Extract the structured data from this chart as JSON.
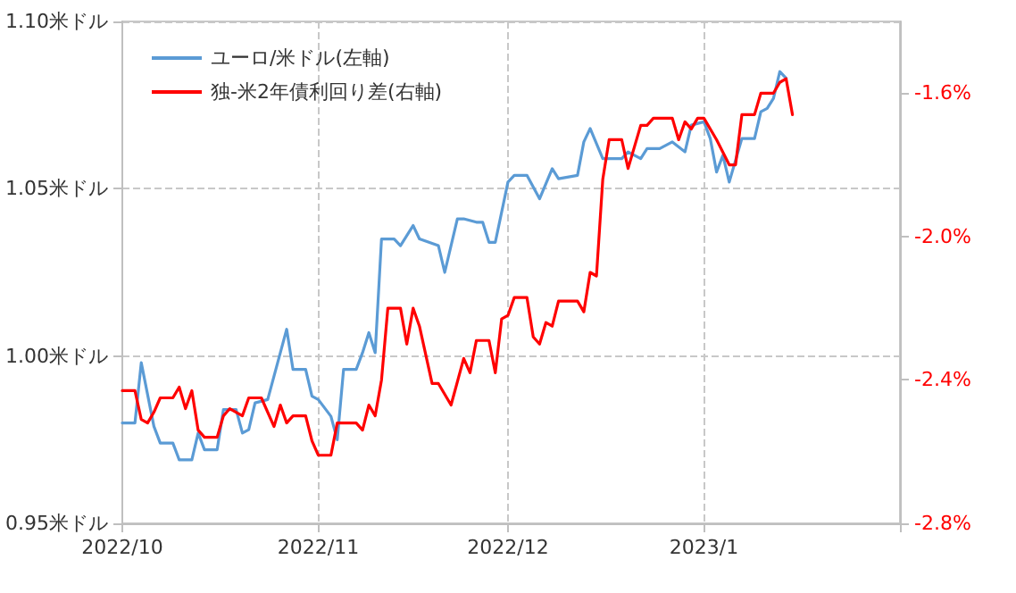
{
  "chart_data": {
    "type": "line",
    "legend": "top left",
    "grid": true,
    "line_style": "solid",
    "marker": "none",
    "xlim": [
      "2022-10-01",
      "2023-02-01"
    ],
    "xticks": [
      {
        "value": "2022-10-01",
        "label": "2022/10"
      },
      {
        "value": "2022-11-01",
        "label": "2022/11"
      },
      {
        "value": "2022-12-01",
        "label": "2022/12"
      },
      {
        "value": "2023-01-01",
        "label": "2023/1"
      },
      {
        "value": "2023-02-01",
        "label": null
      }
    ],
    "ylim": [
      0.95,
      1.1
    ],
    "yticks": [
      {
        "value": 0.95,
        "label": "0.95米ドル"
      },
      {
        "value": 1.0,
        "label": "1.00米ドル"
      },
      {
        "value": 1.05,
        "label": "1.05米ドル"
      },
      {
        "value": 1.1,
        "label": "1.10米ドル"
      }
    ],
    "y2lim": [
      -2.8,
      -1.4
    ],
    "y2ticks": [
      {
        "value": -2.8,
        "label": "-2.8%"
      },
      {
        "value": -2.4,
        "label": "-2.4%"
      },
      {
        "value": -2.0,
        "label": "-2.0%"
      },
      {
        "value": -1.6,
        "label": "-1.6%"
      }
    ],
    "series": [
      {
        "name": "ユーロ/米ドル(左軸)",
        "color": "#5b9bd5",
        "x": [
          "2022-10-01",
          "2022-10-03",
          "2022-10-04",
          "2022-10-06",
          "2022-10-07",
          "2022-10-09",
          "2022-10-10",
          "2022-10-12",
          "2022-10-13",
          "2022-10-14",
          "2022-10-16",
          "2022-10-17",
          "2022-10-19",
          "2022-10-20",
          "2022-10-21",
          "2022-10-22",
          "2022-10-24",
          "2022-10-27",
          "2022-10-28",
          "2022-10-30",
          "2022-10-31",
          "2022-11-01",
          "2022-11-03",
          "2022-11-04",
          "2022-11-05",
          "2022-11-07",
          "2022-11-08",
          "2022-11-09",
          "2022-11-10",
          "2022-11-11",
          "2022-11-13",
          "2022-11-14",
          "2022-11-16",
          "2022-11-17",
          "2022-11-20",
          "2022-11-21",
          "2022-11-23",
          "2022-11-24",
          "2022-11-26",
          "2022-11-27",
          "2022-11-28",
          "2022-11-29",
          "2022-12-01",
          "2022-12-02",
          "2022-12-04",
          "2022-12-06",
          "2022-12-08",
          "2022-12-09",
          "2022-12-12",
          "2022-12-13",
          "2022-12-14",
          "2022-12-16",
          "2022-12-19",
          "2022-12-20",
          "2022-12-22",
          "2022-12-23",
          "2022-12-25",
          "2022-12-27",
          "2022-12-29",
          "2022-12-30",
          "2023-01-01",
          "2023-01-02",
          "2023-01-03",
          "2023-01-04",
          "2023-01-05",
          "2023-01-07",
          "2023-01-09",
          "2023-01-10",
          "2023-01-11",
          "2023-01-12",
          "2023-01-13",
          "2023-01-14"
        ],
        "values": [
          0.98,
          0.98,
          0.998,
          0.979,
          0.974,
          0.974,
          0.969,
          0.969,
          0.977,
          0.972,
          0.972,
          0.984,
          0.984,
          0.977,
          0.978,
          0.986,
          0.987,
          1.008,
          0.996,
          0.996,
          0.988,
          0.987,
          0.982,
          0.975,
          0.996,
          0.996,
          1.001,
          1.007,
          1.001,
          1.035,
          1.035,
          1.033,
          1.039,
          1.035,
          1.033,
          1.025,
          1.041,
          1.041,
          1.04,
          1.04,
          1.034,
          1.034,
          1.052,
          1.054,
          1.054,
          1.047,
          1.056,
          1.053,
          1.054,
          1.064,
          1.068,
          1.059,
          1.059,
          1.061,
          1.059,
          1.062,
          1.062,
          1.064,
          1.061,
          1.069,
          1.07,
          1.065,
          1.055,
          1.06,
          1.052,
          1.065,
          1.065,
          1.073,
          1.074,
          1.077,
          1.085,
          1.083
        ]
      },
      {
        "name": "独-米2年債利回り差(右軸)",
        "color": "#ff0000",
        "axis": "y2",
        "x": [
          "2022-10-01",
          "2022-10-03",
          "2022-10-04",
          "2022-10-05",
          "2022-10-06",
          "2022-10-07",
          "2022-10-09",
          "2022-10-10",
          "2022-10-11",
          "2022-10-12",
          "2022-10-13",
          "2022-10-14",
          "2022-10-16",
          "2022-10-17",
          "2022-10-18",
          "2022-10-20",
          "2022-10-21",
          "2022-10-23",
          "2022-10-25",
          "2022-10-26",
          "2022-10-27",
          "2022-10-28",
          "2022-10-30",
          "2022-10-31",
          "2022-11-01",
          "2022-11-02",
          "2022-11-03",
          "2022-11-04",
          "2022-11-07",
          "2022-11-08",
          "2022-11-09",
          "2022-11-10",
          "2022-11-11",
          "2022-11-12",
          "2022-11-14",
          "2022-11-15",
          "2022-11-16",
          "2022-11-17",
          "2022-11-19",
          "2022-11-20",
          "2022-11-22",
          "2022-11-24",
          "2022-11-25",
          "2022-11-26",
          "2022-11-28",
          "2022-11-29",
          "2022-11-30",
          "2022-12-01",
          "2022-12-02",
          "2022-12-04",
          "2022-12-05",
          "2022-12-06",
          "2022-12-07",
          "2022-12-08",
          "2022-12-09",
          "2022-12-12",
          "2022-12-13",
          "2022-12-14",
          "2022-12-15",
          "2022-12-16",
          "2022-12-17",
          "2022-12-19",
          "2022-12-20",
          "2022-12-22",
          "2022-12-23",
          "2022-12-24",
          "2022-12-27",
          "2022-12-28",
          "2022-12-29",
          "2022-12-30",
          "2022-12-31",
          "2023-01-01",
          "2023-01-03",
          "2023-01-05",
          "2023-01-06",
          "2023-01-07",
          "2023-01-09",
          "2023-01-10",
          "2023-01-12",
          "2023-01-13",
          "2023-01-14",
          "2023-01-15"
        ],
        "values": [
          -2.43,
          -2.43,
          -2.51,
          -2.52,
          -2.49,
          -2.45,
          -2.45,
          -2.42,
          -2.48,
          -2.43,
          -2.54,
          -2.56,
          -2.56,
          -2.5,
          -2.48,
          -2.5,
          -2.45,
          -2.45,
          -2.53,
          -2.47,
          -2.52,
          -2.5,
          -2.5,
          -2.57,
          -2.61,
          -2.61,
          -2.61,
          -2.52,
          -2.52,
          -2.54,
          -2.47,
          -2.5,
          -2.4,
          -2.2,
          -2.2,
          -2.3,
          -2.2,
          -2.25,
          -2.41,
          -2.41,
          -2.47,
          -2.34,
          -2.38,
          -2.29,
          -2.29,
          -2.38,
          -2.23,
          -2.22,
          -2.17,
          -2.17,
          -2.28,
          -2.3,
          -2.24,
          -2.25,
          -2.18,
          -2.18,
          -2.21,
          -2.1,
          -2.11,
          -1.84,
          -1.73,
          -1.73,
          -1.81,
          -1.69,
          -1.69,
          -1.67,
          -1.67,
          -1.73,
          -1.68,
          -1.7,
          -1.67,
          -1.67,
          -1.73,
          -1.8,
          -1.8,
          -1.66,
          -1.66,
          -1.6,
          -1.6,
          -1.57,
          -1.56,
          -1.66
        ]
      }
    ]
  }
}
